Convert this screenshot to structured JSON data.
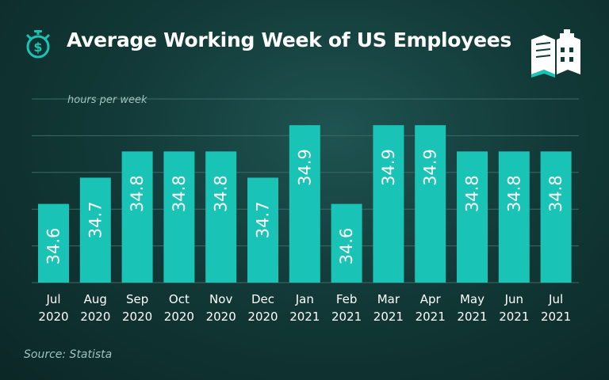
{
  "header": {
    "title": "Average Working Week of US Employees"
  },
  "footer": {
    "source": "Source: Statista"
  },
  "colors": {
    "bar": "#19c4b6",
    "bar_top": "#2ad8ca",
    "grid": "#3c6a66",
    "text": "#ffffff",
    "muted": "#9fc2bf"
  },
  "icons": {
    "left": "stopwatch-dollar-icon",
    "right": "book-building-logo-icon"
  },
  "chart_data": {
    "type": "bar",
    "title": "Average Working Week of US Employees",
    "ylabel": "hours per week",
    "xlabel": "",
    "ylim": [
      34.3,
      35.0
    ],
    "grid": true,
    "categories": [
      [
        "Jul",
        "2020"
      ],
      [
        "Aug",
        "2020"
      ],
      [
        "Sep",
        "2020"
      ],
      [
        "Oct",
        "2020"
      ],
      [
        "Nov",
        "2020"
      ],
      [
        "Dec",
        "2020"
      ],
      [
        "Jan",
        "2021"
      ],
      [
        "Feb",
        "2021"
      ],
      [
        "Mar",
        "2021"
      ],
      [
        "Apr",
        "2021"
      ],
      [
        "May",
        "2021"
      ],
      [
        "Jun",
        "2021"
      ],
      [
        "Jul",
        "2021"
      ]
    ],
    "values": [
      34.6,
      34.7,
      34.8,
      34.8,
      34.8,
      34.7,
      34.9,
      34.6,
      34.9,
      34.9,
      34.8,
      34.8,
      34.8
    ],
    "labels": [
      "34.6",
      "34.7",
      "34.8",
      "34.8",
      "34.8",
      "34.7",
      "34.9",
      "34.6",
      "34.9",
      "34.9",
      "34.8",
      "34.8",
      "34.8"
    ]
  }
}
